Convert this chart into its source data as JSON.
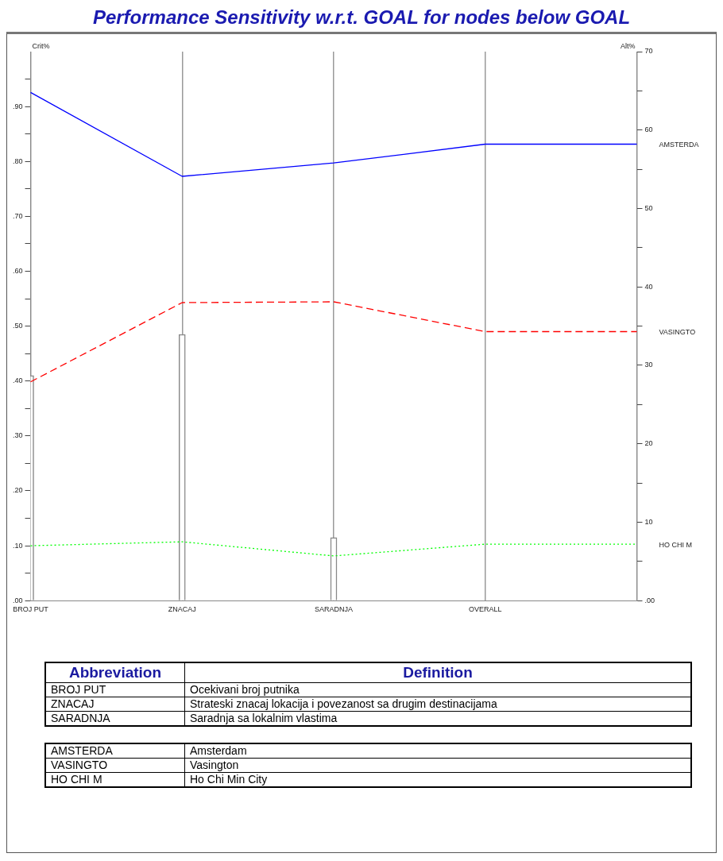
{
  "chart_data": {
    "type": "bar",
    "title": "Performance Sensitivity w.r.t. GOAL for nodes below GOAL",
    "ylabel": "Crit%",
    "y2label": "Alt%",
    "categories": [
      "BROJ PUT",
      "ZNACAJ",
      "SARADNJA",
      "OVERALL",
      null
    ],
    "series": [
      {
        "color": "#ffffff",
        "values": [
          0.41,
          0.485,
          0.115,
          null,
          null
        ]
      },
      {
        "type": "line",
        "name": "AMSTERDA",
        "color": "#0000ff",
        "axis": "y2",
        "line_style": "solid",
        "values": [
          64.8,
          54.1,
          55.8,
          58.2,
          58.2
        ]
      },
      {
        "type": "line",
        "name": "VASINGTO",
        "color": "#ff0000",
        "axis": "y2",
        "line_style": "dashed",
        "values": [
          27.9,
          38.0,
          38.1,
          34.3,
          34.3
        ]
      },
      {
        "type": "line",
        "name": "HO CHI M",
        "color": "#00ff00",
        "axis": "y2",
        "line_style": "dotted",
        "values": [
          7.0,
          7.5,
          5.7,
          7.2,
          7.2
        ]
      }
    ],
    "ylim": [
      0,
      1
    ],
    "yticks": [
      {
        "value": 0,
        "label": ".00"
      },
      {
        "value": 0.05,
        "label": null
      },
      {
        "value": 0.1,
        "label": ".10"
      },
      {
        "value": 0.15,
        "label": null
      },
      {
        "value": 0.2,
        "label": ".20"
      },
      {
        "value": 0.25,
        "label": null
      },
      {
        "value": 0.3,
        "label": ".30"
      },
      {
        "value": 0.35,
        "label": null
      },
      {
        "value": 0.4,
        "label": ".40"
      },
      {
        "value": 0.45,
        "label": null
      },
      {
        "value": 0.5,
        "label": ".50"
      },
      {
        "value": 0.55,
        "label": null
      },
      {
        "value": 0.6,
        "label": ".60"
      },
      {
        "value": 0.65,
        "label": null
      },
      {
        "value": 0.7,
        "label": ".70"
      },
      {
        "value": 0.75,
        "label": null
      },
      {
        "value": 0.8,
        "label": ".80"
      },
      {
        "value": 0.85,
        "label": null
      },
      {
        "value": 0.9,
        "label": ".90"
      },
      {
        "value": 0.95,
        "label": null
      }
    ],
    "y2lim": [
      0,
      70
    ],
    "y2ticks": [
      {
        "value": 0,
        "label": ".00"
      },
      {
        "value": 5,
        "label": null
      },
      10,
      {
        "value": 15,
        "label": null
      },
      20,
      {
        "value": 25,
        "label": null
      },
      30,
      {
        "value": 35,
        "label": null
      },
      40,
      {
        "value": 45,
        "label": null
      },
      50,
      {
        "value": 55,
        "label": null
      },
      60,
      {
        "value": 65,
        "label": null
      },
      70
    ],
    "grid": "x",
    "marker": "none",
    "annotations": [
      "Abbreviation",
      "Definition",
      "BROJ PUT",
      "Ocekivani broj putnika",
      "ZNACAJ",
      "Strateski znacaj lokacija i povezanost sa drugim destinacijama",
      "SARADNJA",
      "Saradnja sa lokalnim vlastima",
      "AMSTERDA",
      "Amsterdam",
      "VASINGTO",
      "Vasington",
      "HO CHI M",
      "Ho Chi Min City"
    ]
  }
}
